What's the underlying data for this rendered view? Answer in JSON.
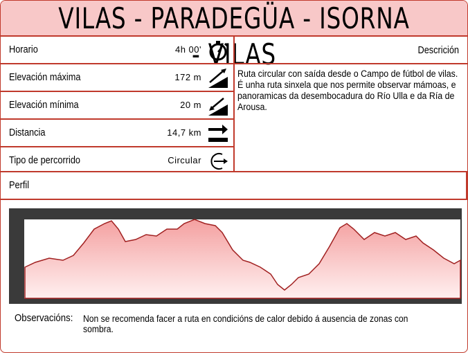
{
  "header": {
    "title": "VILAS - PARADEGÜA - ISORNA - VILAS"
  },
  "details": [
    {
      "label": "Horario",
      "value": "4h 00'"
    },
    {
      "label": "Elevación máxima",
      "value": "172 m"
    },
    {
      "label": "Elevación mínima",
      "value": "20 m"
    },
    {
      "label": "Distancia",
      "value": "14,7 km"
    },
    {
      "label": "Tipo de percorrido",
      "value": "Circular"
    }
  ],
  "description": {
    "title": "Descrición",
    "text": "Ruta circular con saída desde o Campo de fútbol de vilas. É unha ruta sinxela que nos permite observar mámoas, e panoramicas da desembocadura do Río Ulla e da Ría de Arousa."
  },
  "profile": {
    "title": "Perfil"
  },
  "observations": {
    "label": "Observacións:",
    "text": "Non se recomenda facer a ruta en condicións de calor debido á ausencia de zonas con sombra."
  }
}
